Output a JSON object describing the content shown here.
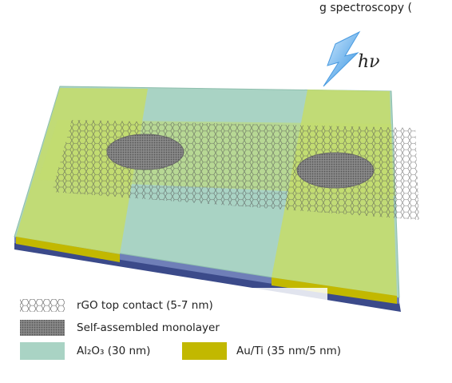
{
  "header": {
    "caption_fragment": "g spectroscopy ("
  },
  "labels": {
    "photon": "hν"
  },
  "legend": {
    "items": [
      {
        "label": "rGO top contact (5-7 nm)"
      },
      {
        "label": "Self-assembled monolayer"
      },
      {
        "label": "Al₂O₃ (30 nm)"
      },
      {
        "label": "Au/Ti (35 nm/5 nm)"
      }
    ]
  }
}
